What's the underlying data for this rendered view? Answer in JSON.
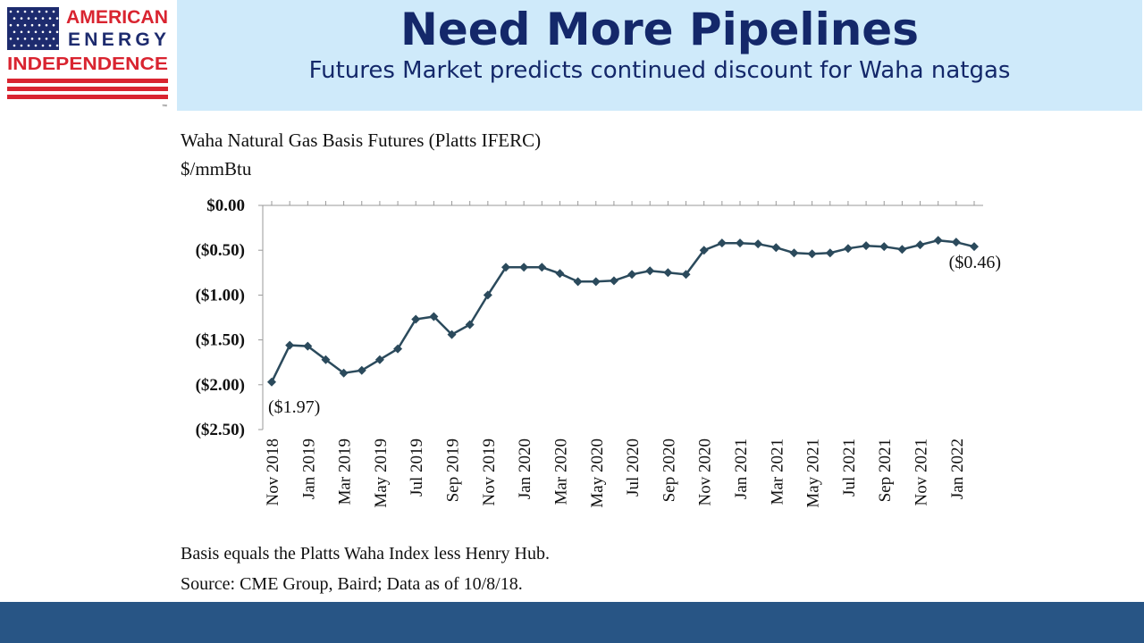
{
  "header": {
    "logo": {
      "lines": [
        "AMERICAN",
        "ENERGY",
        "INDEPENDENCE"
      ],
      "trademark": "™",
      "colors": {
        "red": "#d92430",
        "blue": "#1d2b6e"
      }
    },
    "title": "Need More Pipelines",
    "subtitle": "Futures Market predicts continued discount for Waha natgas",
    "colors": {
      "title": "#14286a",
      "panel": "#cfeafa"
    }
  },
  "chart_data": {
    "type": "line",
    "title": "Waha Natural Gas Basis Futures (Platts IFERC)",
    "ylabel": "$/mmBtu",
    "ylim": [
      -2.5,
      0
    ],
    "yticks": [
      0,
      -0.5,
      -1,
      -1.5,
      -2,
      -2.5
    ],
    "ytick_labels": [
      "$0.00",
      "($0.50)",
      "($1.00)",
      "($1.50)",
      "($2.00)",
      "($2.50)"
    ],
    "xtick_labels": [
      "Nov 2018",
      "Jan 2019",
      "Mar 2019",
      "May 2019",
      "Jul 2019",
      "Sep 2019",
      "Nov 2019",
      "Jan 2020",
      "Mar 2020",
      "May 2020",
      "Jul 2020",
      "Sep 2020",
      "Nov 2020",
      "Jan 2021",
      "Mar 2021",
      "May 2021",
      "Jul 2021",
      "Sep 2021",
      "Nov 2021",
      "Jan 2022"
    ],
    "categories": [
      "Nov 2018",
      "Dec 2018",
      "Jan 2019",
      "Feb 2019",
      "Mar 2019",
      "Apr 2019",
      "May 2019",
      "Jun 2019",
      "Jul 2019",
      "Aug 2019",
      "Sep 2019",
      "Oct 2019",
      "Nov 2019",
      "Dec 2019",
      "Jan 2020",
      "Feb 2020",
      "Mar 2020",
      "Apr 2020",
      "May 2020",
      "Jun 2020",
      "Jul 2020",
      "Aug 2020",
      "Sep 2020",
      "Oct 2020",
      "Nov 2020",
      "Dec 2020",
      "Jan 2021",
      "Feb 2021",
      "Mar 2021",
      "Apr 2021",
      "May 2021",
      "Jun 2021",
      "Jul 2021",
      "Aug 2021",
      "Sep 2021",
      "Oct 2021",
      "Nov 2021",
      "Dec 2021",
      "Jan 2022",
      "Feb 2022"
    ],
    "values": [
      -1.97,
      -1.56,
      -1.57,
      -1.72,
      -1.87,
      -1.84,
      -1.72,
      -1.6,
      -1.27,
      -1.24,
      -1.44,
      -1.33,
      -1.0,
      -0.69,
      -0.69,
      -0.69,
      -0.76,
      -0.85,
      -0.85,
      -0.84,
      -0.77,
      -0.73,
      -0.75,
      -0.77,
      -0.5,
      -0.42,
      -0.42,
      -0.43,
      -0.47,
      -0.53,
      -0.54,
      -0.53,
      -0.48,
      -0.45,
      -0.46,
      -0.49,
      -0.44,
      -0.39,
      -0.41,
      -0.46
    ],
    "annotations": [
      {
        "point": 0,
        "text": "($1.97)"
      },
      {
        "point": 39,
        "text": "($0.46)"
      }
    ],
    "line_color": "#2b4a5c",
    "notes": [
      "Basis equals the Platts Waha Index less Henry Hub.",
      "Source: CME Group, Baird; Data as of 10/8/18."
    ]
  },
  "footer": {
    "color": "#285585"
  }
}
